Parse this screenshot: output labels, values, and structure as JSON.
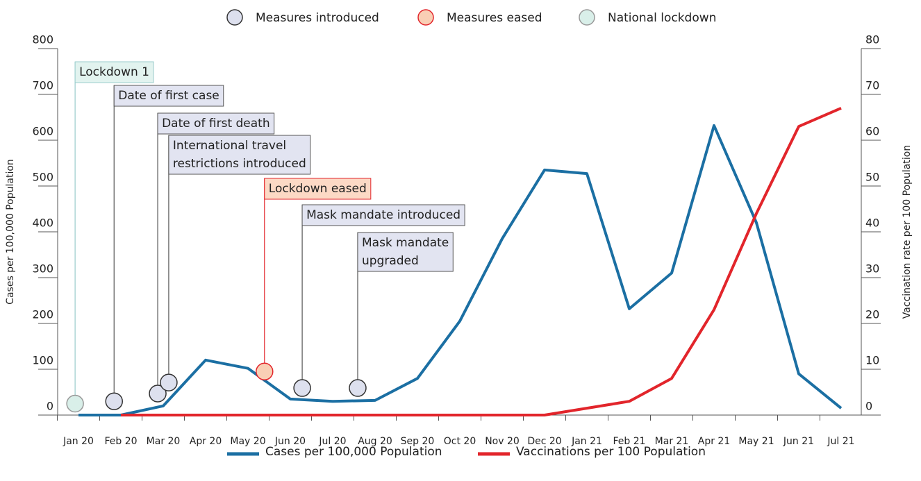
{
  "chart_data": {
    "type": "line",
    "categories": [
      "Jan 20",
      "Feb 20",
      "Mar 20",
      "Apr 20",
      "May 20",
      "Jun 20",
      "Jul 20",
      "Aug 20",
      "Sep 20",
      "Oct 20",
      "Nov 20",
      "Dec 20",
      "Jan 21",
      "Feb 21",
      "Mar 21",
      "Apr 21",
      "May 21",
      "Jun 21",
      "Jul 21"
    ],
    "series": [
      {
        "name": "Cases per 100,000 Population",
        "color": "#1b6fa3",
        "values": [
          0,
          0,
          20,
          120,
          102,
          35,
          30,
          32,
          80,
          205,
          385,
          535,
          527,
          232,
          310,
          632,
          420,
          90,
          15
        ]
      },
      {
        "name": "Vaccinations per 100 Population",
        "color": "#e2252b",
        "axis": "y2",
        "values": [
          null,
          0,
          0,
          0,
          0,
          0,
          0,
          0,
          0,
          0,
          0,
          0,
          1.5,
          3,
          8,
          23,
          44,
          63,
          67
        ]
      }
    ],
    "ylabel": "Cases per 100,000 Population",
    "y2label": "Vaccination rate per 100 Population",
    "ylim": [
      0,
      800
    ],
    "yticks": [
      0,
      100,
      200,
      300,
      400,
      500,
      600,
      700,
      800
    ],
    "y2lim": [
      0,
      80
    ],
    "y2ticks": [
      0,
      10,
      20,
      30,
      40,
      50,
      60,
      70,
      80
    ],
    "event_types": [
      {
        "name": "Measures introduced",
        "fill": "#dde0ee",
        "stroke": "#333333",
        "box": "#e2e4f1",
        "border": "#555555"
      },
      {
        "name": "Measures eased",
        "fill": "#f9cfb5",
        "stroke": "#e2252b",
        "box": "#fcd9c5",
        "border": "#e2252b"
      },
      {
        "name": "National lockdown",
        "fill": "#d9efe9",
        "stroke": "#999999",
        "box": "#e2f3ef",
        "border": "#99cccc"
      }
    ],
    "events": [
      {
        "label": [
          "Lockdown 1"
        ],
        "kind": 2,
        "x": -0.08,
        "value": 25
      },
      {
        "label": [
          "Date of first case"
        ],
        "kind": 0,
        "x": 0.84,
        "value": 30
      },
      {
        "label": [
          "Date of first death"
        ],
        "kind": 0,
        "x": 1.87,
        "value": 47
      },
      {
        "label": [
          "International travel",
          "restrictions introduced"
        ],
        "kind": 0,
        "x": 2.13,
        "value": 71
      },
      {
        "label": [
          "Lockdown eased"
        ],
        "kind": 1,
        "x": 4.39,
        "value": 95
      },
      {
        "label": [
          "Mask mandate introduced"
        ],
        "kind": 0,
        "x": 5.28,
        "value": 59
      },
      {
        "label": [
          "Mask mandate",
          "upgraded"
        ],
        "kind": 0,
        "x": 6.59,
        "value": 59
      }
    ]
  }
}
